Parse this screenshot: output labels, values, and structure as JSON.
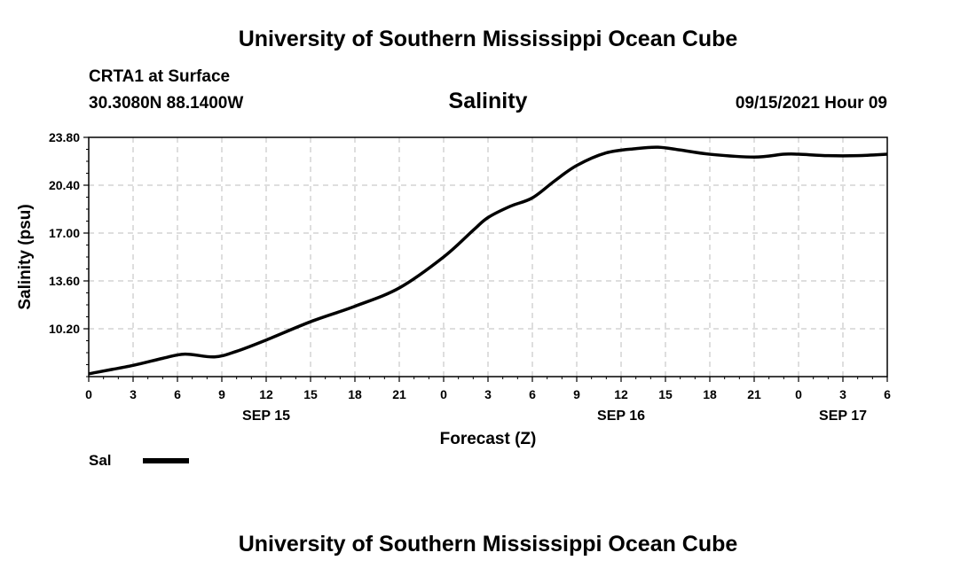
{
  "header": {
    "title": "University of Southern Mississippi Ocean Cube",
    "station": "CRTA1 at Surface",
    "coords": "30.3080N  88.1400W",
    "variable": "Salinity",
    "datetime": "09/15/2021 Hour 09"
  },
  "footer": {
    "title": "University of Southern Mississippi Ocean Cube"
  },
  "legend": {
    "label": "Sal",
    "color": "#000000"
  },
  "chart_data": {
    "type": "line",
    "title": "Salinity",
    "xlabel": "Forecast (Z)",
    "ylabel": "Salinity (psu)",
    "xlim": [
      0,
      54
    ],
    "ylim": [
      6.8,
      23.8
    ],
    "grid": true,
    "x_ticks": [
      {
        "x": 0,
        "label": "0"
      },
      {
        "x": 3,
        "label": "3"
      },
      {
        "x": 6,
        "label": "6"
      },
      {
        "x": 9,
        "label": "9"
      },
      {
        "x": 12,
        "label": "12"
      },
      {
        "x": 15,
        "label": "15"
      },
      {
        "x": 18,
        "label": "18"
      },
      {
        "x": 21,
        "label": "21"
      },
      {
        "x": 24,
        "label": "0"
      },
      {
        "x": 27,
        "label": "3"
      },
      {
        "x": 30,
        "label": "6"
      },
      {
        "x": 33,
        "label": "9"
      },
      {
        "x": 36,
        "label": "12"
      },
      {
        "x": 39,
        "label": "15"
      },
      {
        "x": 42,
        "label": "18"
      },
      {
        "x": 45,
        "label": "21"
      },
      {
        "x": 48,
        "label": "0"
      },
      {
        "x": 51,
        "label": "3"
      },
      {
        "x": 54,
        "label": "6"
      }
    ],
    "date_labels": [
      {
        "x": 12,
        "label": "SEP 15"
      },
      {
        "x": 36,
        "label": "SEP 16"
      },
      {
        "x": 51,
        "label": "SEP 17"
      }
    ],
    "y_ticks": [
      {
        "y": 10.2,
        "label": "10.20"
      },
      {
        "y": 13.6,
        "label": "13.60"
      },
      {
        "y": 17.0,
        "label": "17.00"
      },
      {
        "y": 20.4,
        "label": "20.40"
      },
      {
        "y": 23.8,
        "label": "23.80"
      }
    ],
    "series": [
      {
        "name": "Sal",
        "x": [
          0,
          3,
          5,
          6.5,
          8.5,
          10,
          12,
          15,
          18,
          21,
          24,
          26,
          27,
          28.5,
          30,
          31.5,
          33,
          35,
          37,
          38.5,
          40,
          42,
          45,
          47,
          48,
          50,
          52,
          54
        ],
        "values": [
          7.0,
          7.6,
          8.1,
          8.4,
          8.2,
          8.6,
          9.4,
          10.7,
          11.8,
          13.1,
          15.3,
          17.2,
          18.1,
          18.9,
          19.5,
          20.7,
          21.8,
          22.7,
          23.0,
          23.1,
          22.9,
          22.6,
          22.4,
          22.6,
          22.6,
          22.5,
          22.5,
          22.6
        ]
      }
    ]
  }
}
